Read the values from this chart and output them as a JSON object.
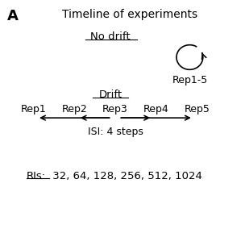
{
  "title": "Timeline of experiments",
  "panel_label": "A",
  "no_drift_label": "No drift",
  "drift_label": "Drift",
  "rep_labels": [
    "Rep1",
    "Rep2",
    "Rep3",
    "Rep4",
    "Rep5"
  ],
  "rep1_5_label": "Rep1-5",
  "isi_label": "ISI: 4 steps",
  "ris_label": "RIs:",
  "ris_values": " 32, 64, 128, 256, 512, 1024",
  "background_color": "#ffffff",
  "text_color": "#000000",
  "fig_width": 3.04,
  "fig_height": 2.84,
  "dpi": 100
}
